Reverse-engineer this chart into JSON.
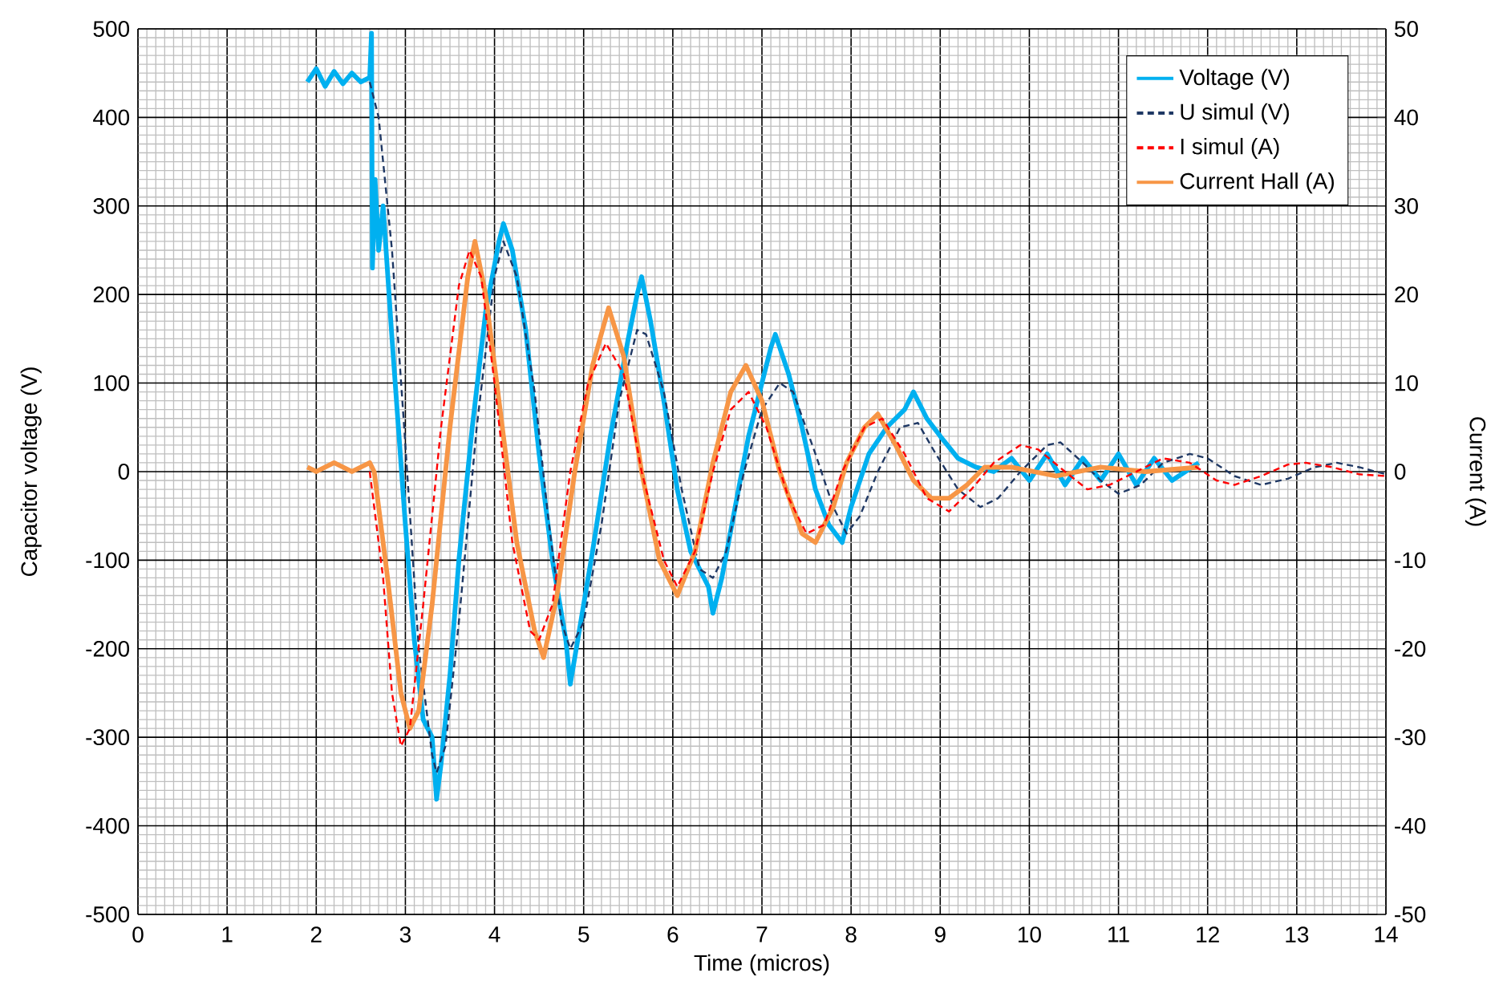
{
  "chart_data": {
    "type": "line",
    "xlabel": "Time (micros)",
    "ylabel": "Capacitor voltage (V)",
    "y2label": "Current (A)",
    "xlim": [
      0,
      14
    ],
    "xticks": [
      0,
      1,
      2,
      3,
      4,
      5,
      6,
      7,
      8,
      9,
      10,
      11,
      12,
      13,
      14
    ],
    "ylim": [
      -500,
      500
    ],
    "yticks": [
      -500,
      -400,
      -300,
      -200,
      -100,
      0,
      100,
      200,
      300,
      400,
      500
    ],
    "y2lim": [
      -50,
      50
    ],
    "y2ticks": [
      -50,
      -40,
      -30,
      -20,
      -10,
      0,
      10,
      20,
      30,
      40,
      50
    ],
    "grid": true,
    "legend": "top right",
    "marker": "none",
    "series": [
      {
        "name": "Voltage (V)",
        "color": "#00b0f0",
        "line_style": "solid",
        "axis": "y",
        "x": [
          1.9,
          2.0,
          2.1,
          2.2,
          2.3,
          2.4,
          2.5,
          2.6,
          2.62,
          2.63,
          2.66,
          2.7,
          2.75,
          2.85,
          3.0,
          3.1,
          3.2,
          3.3,
          3.35,
          3.4,
          3.5,
          3.6,
          3.75,
          3.9,
          4.05,
          4.1,
          4.2,
          4.35,
          4.5,
          4.65,
          4.8,
          4.85,
          4.95,
          5.1,
          5.3,
          5.5,
          5.6,
          5.65,
          5.75,
          5.9,
          6.05,
          6.2,
          6.4,
          6.45,
          6.55,
          6.7,
          6.85,
          7.0,
          7.1,
          7.15,
          7.3,
          7.45,
          7.6,
          7.75,
          7.9,
          8.0,
          8.2,
          8.4,
          8.6,
          8.7,
          8.85,
          9.0,
          9.2,
          9.4,
          9.6,
          9.8,
          10.0,
          10.2,
          10.4,
          10.6,
          10.8,
          11.0,
          11.2,
          11.4,
          11.6,
          11.9
        ],
        "values": [
          440,
          455,
          435,
          452,
          438,
          450,
          440,
          445,
          495,
          230,
          330,
          250,
          300,
          150,
          -60,
          -190,
          -280,
          -300,
          -370,
          -330,
          -230,
          -100,
          50,
          180,
          260,
          280,
          250,
          160,
          20,
          -100,
          -190,
          -240,
          -180,
          -90,
          40,
          150,
          200,
          220,
          170,
          80,
          -20,
          -90,
          -130,
          -160,
          -120,
          -40,
          40,
          100,
          140,
          155,
          110,
          50,
          -20,
          -60,
          -80,
          -40,
          20,
          50,
          70,
          90,
          60,
          40,
          15,
          5,
          0,
          15,
          -10,
          20,
          -15,
          15,
          -10,
          20,
          -15,
          15,
          -10,
          10
        ]
      },
      {
        "name": "U simul (V)",
        "color": "#1f3864",
        "line_style": "dashed",
        "axis": "y",
        "x": [
          2.6,
          2.7,
          2.85,
          3.0,
          3.15,
          3.3,
          3.35,
          3.45,
          3.6,
          3.8,
          4.0,
          4.1,
          4.25,
          4.45,
          4.6,
          4.75,
          4.85,
          5.0,
          5.2,
          5.4,
          5.6,
          5.7,
          5.9,
          6.1,
          6.3,
          6.45,
          6.6,
          6.8,
          7.0,
          7.2,
          7.35,
          7.6,
          7.8,
          7.95,
          8.1,
          8.3,
          8.55,
          8.75,
          8.95,
          9.2,
          9.45,
          9.65,
          9.9,
          10.2,
          10.35,
          10.6,
          10.8,
          11.0,
          11.25,
          11.5,
          11.8,
          12.0,
          12.3,
          12.6,
          12.9,
          13.2,
          13.45,
          13.7,
          14.0
        ],
        "values": [
          440,
          400,
          250,
          30,
          -200,
          -320,
          -340,
          -310,
          -170,
          50,
          220,
          260,
          220,
          90,
          -50,
          -170,
          -200,
          -170,
          -60,
          80,
          160,
          155,
          90,
          -20,
          -110,
          -120,
          -90,
          0,
          70,
          100,
          90,
          20,
          -40,
          -70,
          -50,
          0,
          50,
          55,
          20,
          -20,
          -40,
          -30,
          0,
          30,
          33,
          10,
          -10,
          -25,
          -15,
          10,
          20,
          15,
          -5,
          -15,
          -8,
          5,
          10,
          5,
          -3
        ]
      },
      {
        "name": "I simul (A)",
        "color": "#ff0000",
        "line_style": "dashed",
        "axis": "y2",
        "x": [
          2.6,
          2.75,
          2.85,
          2.95,
          3.05,
          3.2,
          3.4,
          3.6,
          3.72,
          3.85,
          4.0,
          4.2,
          4.4,
          4.5,
          4.65,
          4.85,
          5.05,
          5.25,
          5.45,
          5.65,
          5.9,
          6.05,
          6.25,
          6.45,
          6.65,
          6.85,
          7.05,
          7.3,
          7.5,
          7.7,
          7.9,
          8.15,
          8.35,
          8.6,
          8.85,
          9.1,
          9.35,
          9.6,
          9.9,
          10.1,
          10.4,
          10.65,
          10.9,
          11.2,
          11.5,
          11.8,
          12.1,
          12.3,
          12.6,
          12.9,
          13.1,
          13.4,
          13.7,
          14.0
        ],
        "values": [
          0,
          -12,
          -25,
          -31,
          -29,
          -15,
          5,
          21,
          25,
          22,
          10,
          -8,
          -18,
          -19,
          -15,
          0,
          10,
          14.5,
          11,
          0,
          -10,
          -13,
          -9,
          0,
          7,
          9,
          5,
          -3,
          -7,
          -6,
          0,
          5,
          6,
          2,
          -3,
          -4.5,
          -2,
          1,
          3,
          2.5,
          0,
          -2,
          -1.5,
          0,
          1.5,
          1,
          -1,
          -1.5,
          -0.5,
          0.8,
          1,
          0.5,
          -0.3,
          -0.5
        ]
      },
      {
        "name": "Current Hall (A)",
        "color": "#f79646",
        "line_style": "solid",
        "axis": "y2",
        "x": [
          1.9,
          2.0,
          2.2,
          2.4,
          2.6,
          2.65,
          2.8,
          2.95,
          3.05,
          3.15,
          3.3,
          3.5,
          3.7,
          3.78,
          3.9,
          4.05,
          4.25,
          4.45,
          4.55,
          4.7,
          4.9,
          5.1,
          5.28,
          5.45,
          5.65,
          5.85,
          6.05,
          6.25,
          6.45,
          6.65,
          6.82,
          7.0,
          7.2,
          7.45,
          7.6,
          7.8,
          7.95,
          8.15,
          8.3,
          8.5,
          8.7,
          8.9,
          9.1,
          9.3,
          9.5,
          9.8,
          10.3,
          10.8,
          11.3,
          11.9
        ],
        "values": [
          0.5,
          0,
          1,
          0,
          1,
          0,
          -12,
          -25,
          -29,
          -27,
          -15,
          5,
          22,
          26,
          20,
          8,
          -8,
          -18,
          -21,
          -14,
          0,
          12,
          18.5,
          13,
          0,
          -10,
          -14,
          -9,
          1,
          9,
          12,
          8,
          0,
          -7,
          -8,
          -4,
          1,
          5,
          6.5,
          3,
          -1,
          -3,
          -3,
          -1.5,
          0.5,
          0.5,
          -0.5,
          0.5,
          0,
          0.5
        ]
      }
    ]
  }
}
